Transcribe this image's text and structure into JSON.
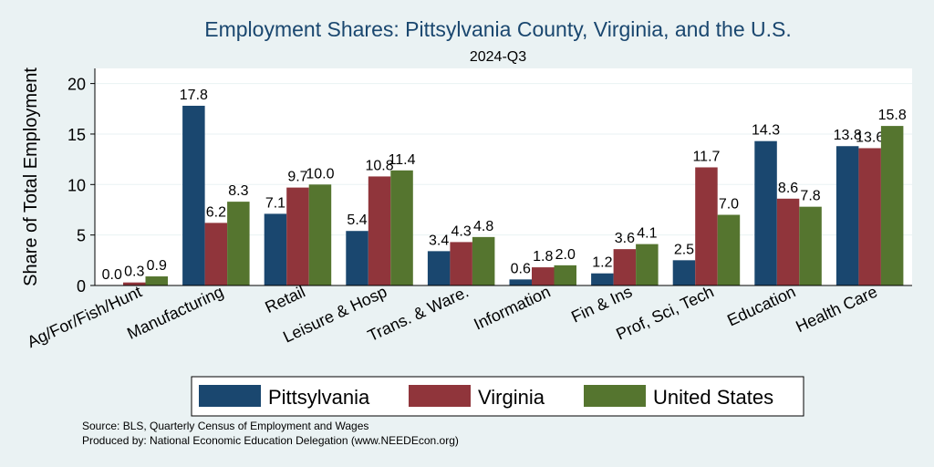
{
  "chart_data": {
    "type": "bar",
    "title": "Employment Shares: Pittsylvania County, Virginia, and the U.S.",
    "subtitle": "2024-Q3",
    "ylabel": "Share of Total Employment",
    "xlabel": "",
    "ylim": [
      0,
      21.5
    ],
    "yticks": [
      0,
      5,
      10,
      15,
      20
    ],
    "grid": true,
    "legend_position": "bottom",
    "categories": [
      "Ag/For/Fish/Hunt",
      "Manufacturing",
      "Retail",
      "Leisure & Hosp",
      "Trans. & Ware.",
      "Information",
      "Fin & Ins",
      "Prof, Sci, Tech",
      "Education",
      "Health Care"
    ],
    "series": [
      {
        "name": "Pittsylvania",
        "color": "#1a476f",
        "values": [
          0.0,
          17.8,
          7.1,
          5.4,
          3.4,
          0.6,
          1.2,
          2.5,
          14.3,
          13.8
        ],
        "labels": [
          "0.0",
          "17.8",
          "7.1",
          "5.4",
          "3.4",
          "0.6",
          "1.2",
          "2.5",
          "14.3",
          "13.8"
        ]
      },
      {
        "name": "Virginia",
        "color": "#90353b",
        "values": [
          0.3,
          6.2,
          9.7,
          10.8,
          4.3,
          1.8,
          3.6,
          11.7,
          8.6,
          13.6
        ],
        "labels": [
          "0.3",
          "6.2",
          "9.7",
          "10.8",
          "4.3",
          "1.8",
          "3.6",
          "11.7",
          "8.6",
          "13.6"
        ]
      },
      {
        "name": "United States",
        "color": "#55752f",
        "values": [
          0.9,
          8.3,
          10.0,
          11.4,
          4.8,
          2.0,
          4.1,
          7.0,
          7.8,
          15.8
        ],
        "labels": [
          "0.9",
          "8.3",
          "10.0",
          "11.4",
          "4.8",
          "2.0",
          "4.1",
          "7.0",
          "7.8",
          "15.8"
        ]
      }
    ]
  },
  "notes": {
    "source": "Source: BLS, Quarterly Census of Employment and Wages",
    "produced": "Produced by: National Economic Education Delegation (www.NEEDEcon.org)"
  }
}
